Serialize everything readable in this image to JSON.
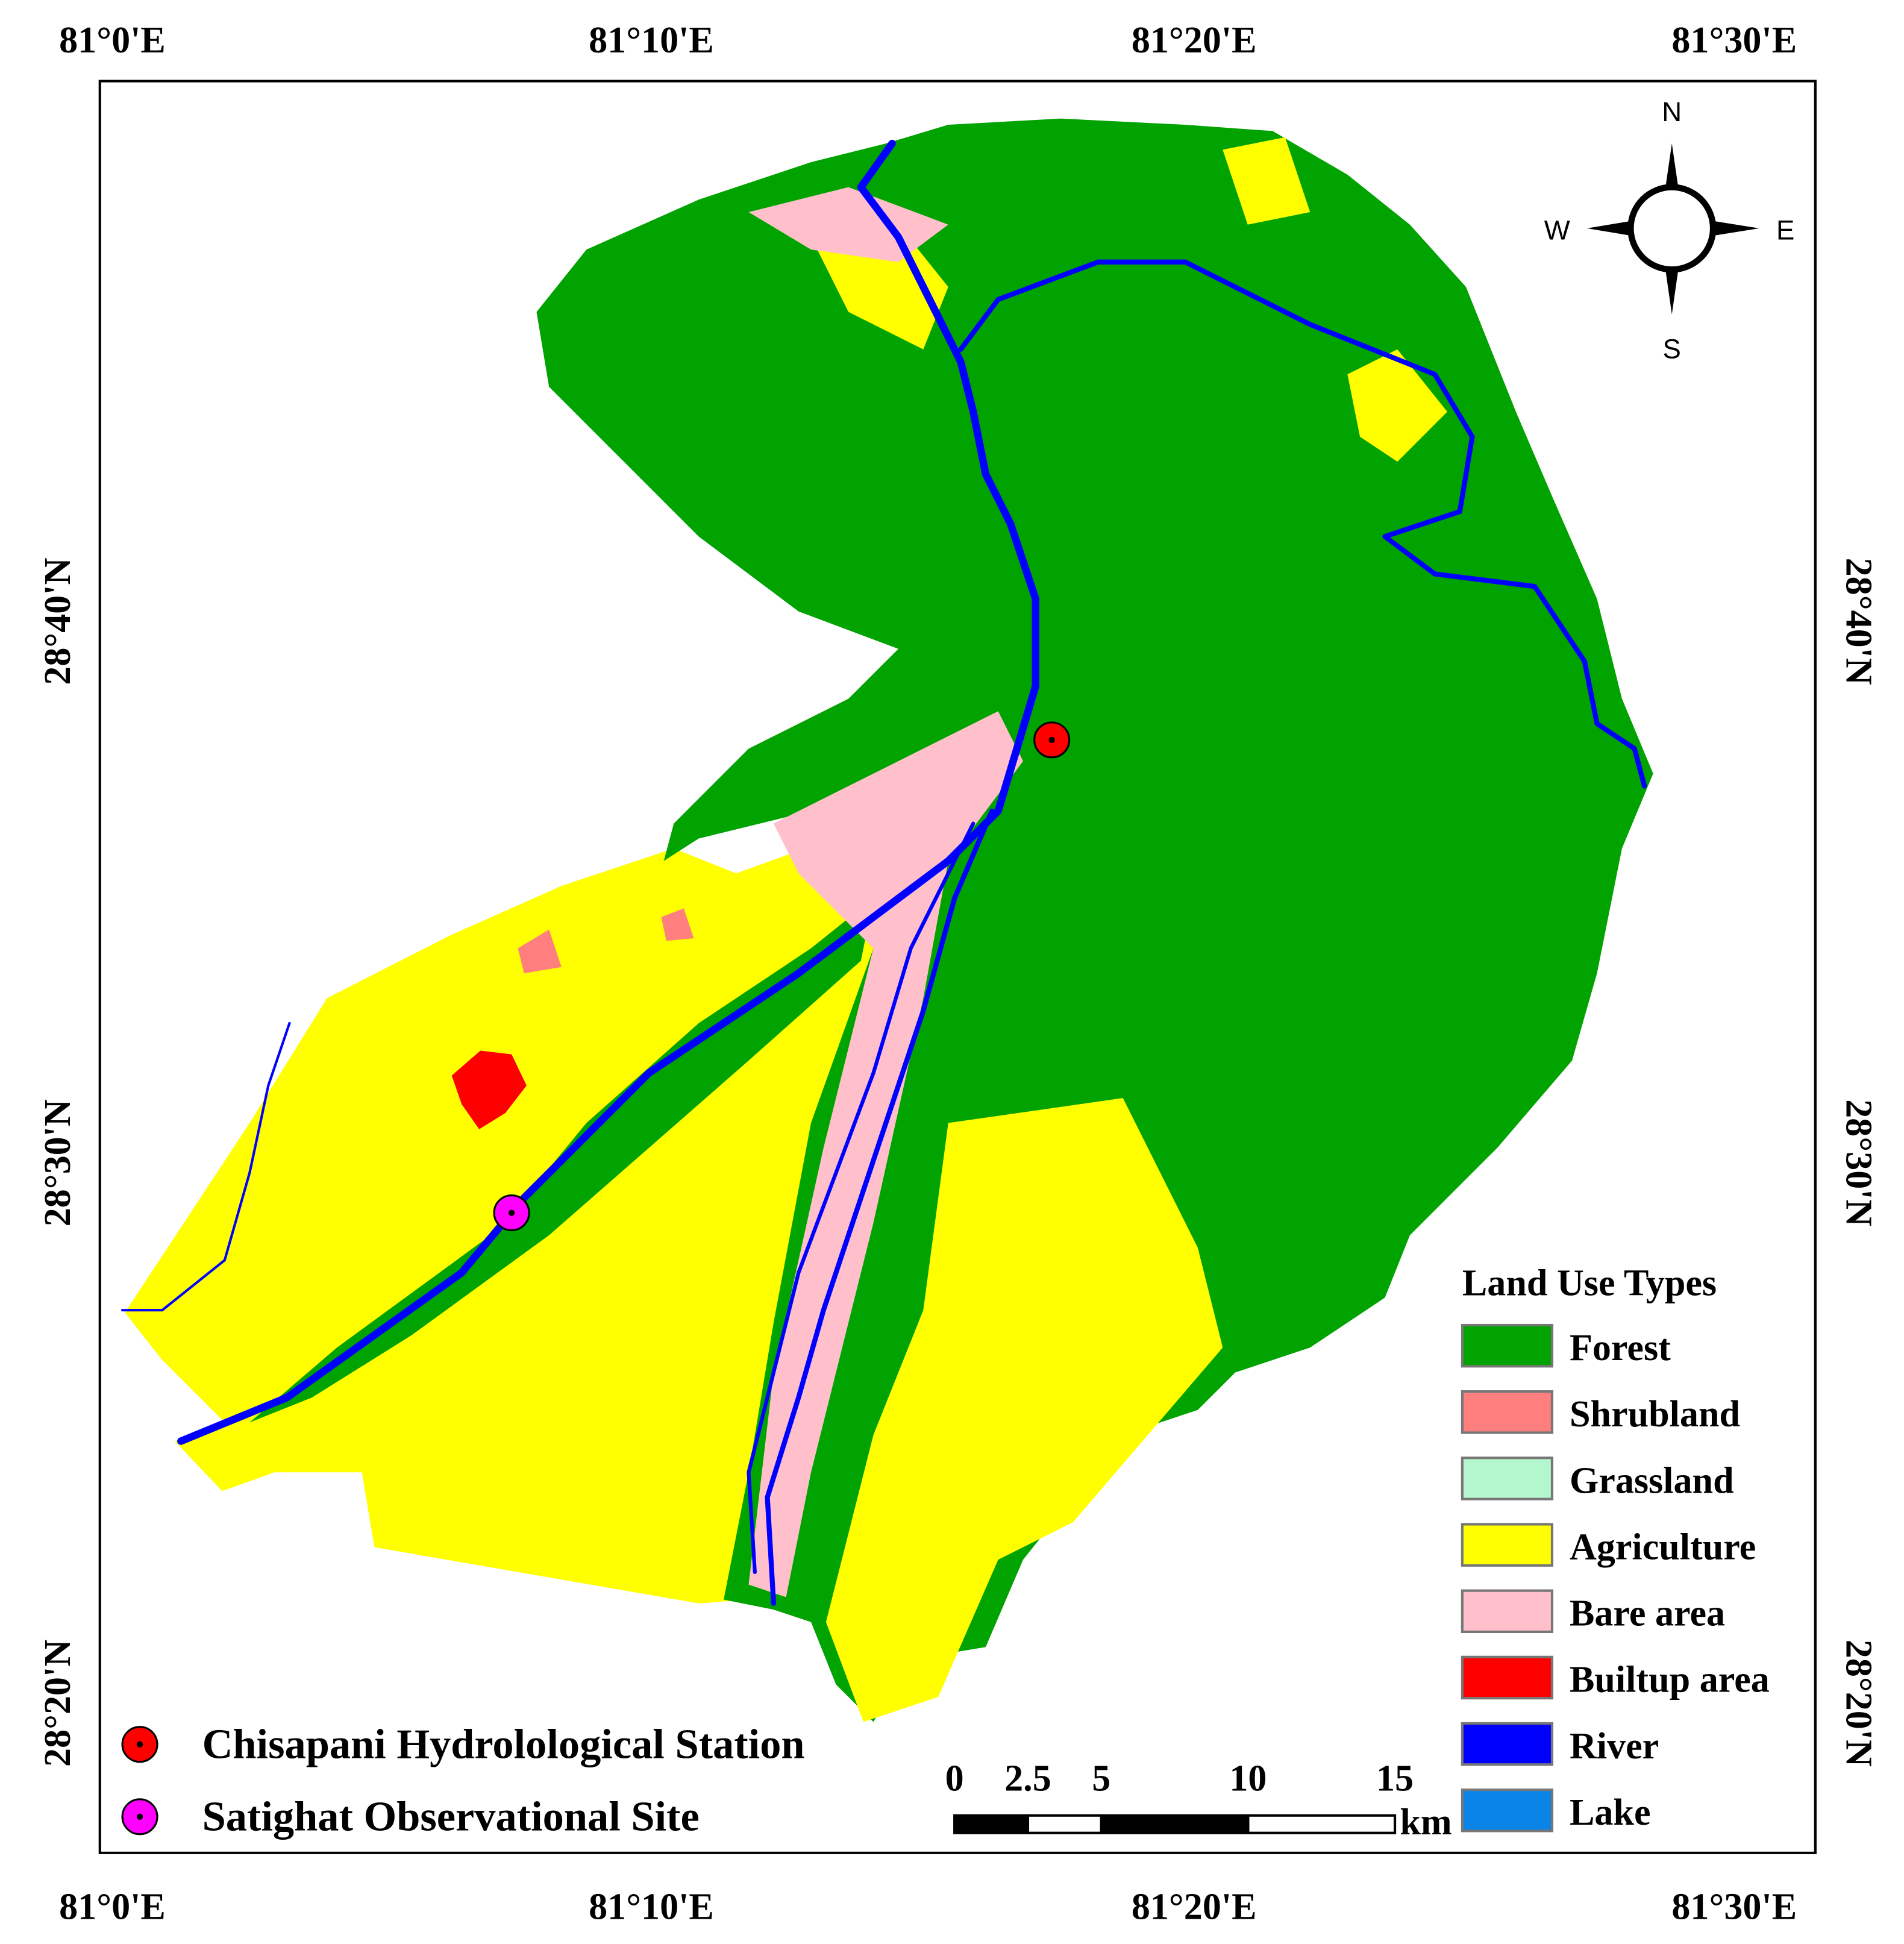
{
  "map": {
    "longitude_labels": [
      "81°0'E",
      "81°10'E",
      "81°20'E",
      "81°30'E"
    ],
    "latitude_labels": [
      "28°40'N",
      "28°30'N",
      "28°20'N"
    ],
    "compass": {
      "n": "N",
      "e": "E",
      "s": "S",
      "w": "W"
    },
    "legend": {
      "title": "Land Use Types",
      "items": [
        {
          "label": "Forest",
          "color": "#00a300"
        },
        {
          "label": "Shrubland",
          "color": "#ff7f7f"
        },
        {
          "label": "Grassland",
          "color": "#b4f6cd"
        },
        {
          "label": "Agriculture",
          "color": "#ffff00"
        },
        {
          "label": "Bare area",
          "color": "#ffc0cb"
        },
        {
          "label": "Builtup area",
          "color": "#ff0000"
        },
        {
          "label": "River",
          "color": "#0000ff"
        },
        {
          "label": "Lake",
          "color": "#0a84e6"
        }
      ]
    },
    "stations": [
      {
        "label": "Chisapani Hydrolological Station",
        "color": "#ff0000"
      },
      {
        "label": "Satighat Observational Site",
        "color": "#ff00ff"
      }
    ],
    "scale_bar": {
      "ticks": [
        0,
        2.5,
        5,
        10,
        15
      ],
      "unit": "km"
    }
  }
}
